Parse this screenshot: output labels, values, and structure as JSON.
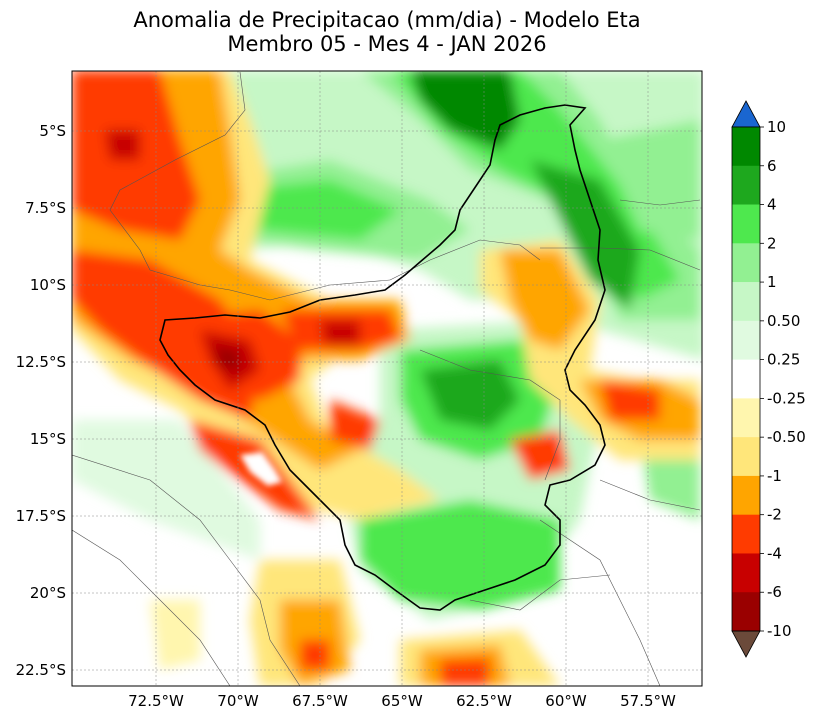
{
  "title_line1": "Anomalia de Precipitacao (mm/dia) - Modelo Eta",
  "title_line2": "Membro 05 - Mes 4 - JAN 2026",
  "lat_ticks": [
    "5°S",
    "7.5°S",
    "10°S",
    "12.5°S",
    "15°S",
    "17.5°S",
    "20°S",
    "22.5°S"
  ],
  "lon_ticks": [
    "72.5°W",
    "70°W",
    "67.5°W",
    "65°W",
    "62.5°W",
    "60°W",
    "57.5°W"
  ],
  "colorbar": {
    "labels": [
      "10",
      "6",
      "4",
      "2",
      "1",
      "0.50",
      "0.25",
      "-0.25",
      "-0.50",
      "-1",
      "-2",
      "-4",
      "-6",
      "-10"
    ],
    "colors_top_to_bottom": [
      "#008800",
      "#1ea81e",
      "#4ee84e",
      "#92f092",
      "#c6f7c6",
      "#e0fae0",
      "#ffffff",
      "#fff6ae",
      "#ffe67a",
      "#ffa500",
      "#ff3b00",
      "#c80000",
      "#9a0000"
    ],
    "over_color": "#1a66d0",
    "under_color": "#6b4a3a"
  }
}
